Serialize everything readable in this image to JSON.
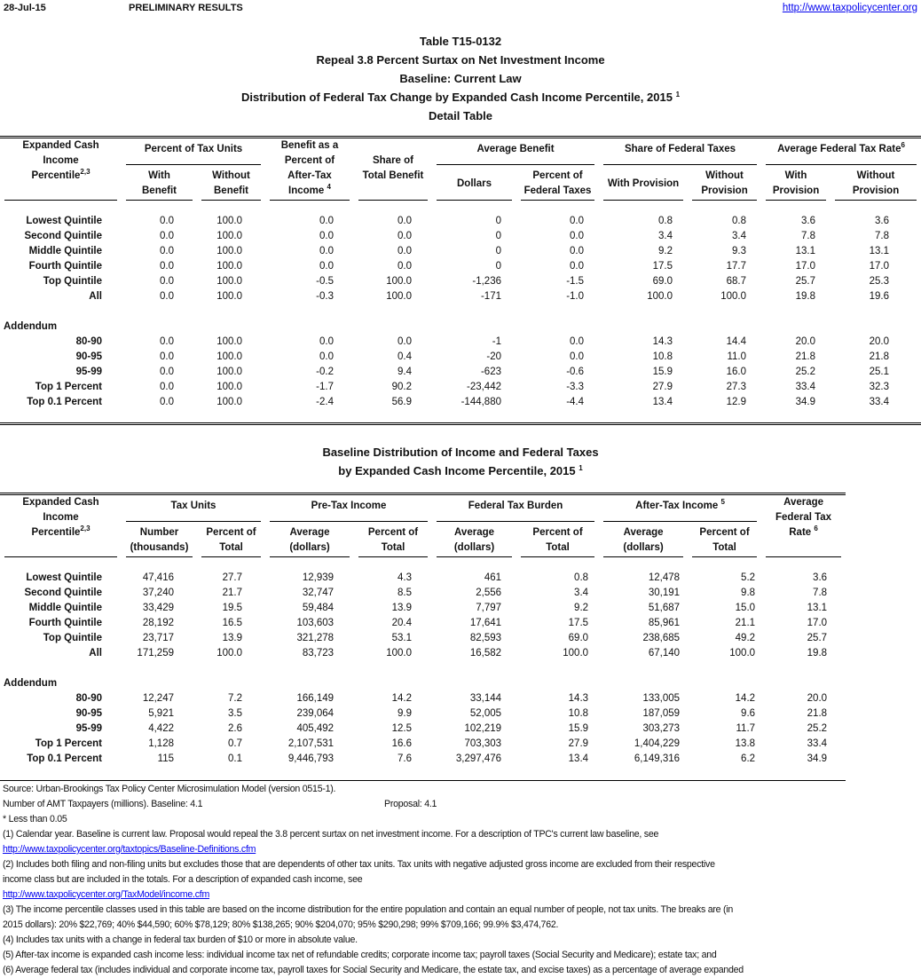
{
  "header": {
    "date": "28-Jul-15",
    "status": "PRELIMINARY RESULTS",
    "link": "http://www.taxpolicycenter.org"
  },
  "titles": [
    "Table T15-0132",
    "Repeal 3.8 Percent Surtax on Net Investment Income",
    "Baseline: Current Law",
    "Distribution of Federal Tax Change by Expanded Cash Income Percentile, 2015",
    "Detail Table"
  ],
  "title_footnote": "1",
  "table1": {
    "label_header": "Expanded Cash Income",
    "label_header2": "Percentile",
    "label_sup": "2,3",
    "groups": {
      "tax_units": "Percent of Tax Units",
      "benefit_pct": [
        "Benefit as a",
        "Percent of",
        "After-Tax",
        "Income"
      ],
      "benefit_pct_sup": "4",
      "share": [
        "Share of",
        "Total Benefit"
      ],
      "avg_benefit": "Average Benefit",
      "share_fed": "Share of Federal Taxes",
      "avg_rate": "Average Federal Tax Rate",
      "avg_rate_sup": "6"
    },
    "sub": {
      "with_benefit": [
        "With",
        "Benefit"
      ],
      "without_benefit": [
        "Without",
        "Benefit"
      ],
      "dollars": "Dollars",
      "pct_fed": [
        "Percent of",
        "Federal Taxes"
      ],
      "with_provision": "With Provision",
      "without_provision": [
        "Without",
        "Provision"
      ],
      "rate_with": [
        "With",
        "Provision"
      ],
      "rate_without": [
        "Without",
        "Provision"
      ]
    },
    "rows": [
      {
        "label": "Lowest Quintile",
        "values": [
          "0.0",
          "100.0",
          "0.0",
          "0.0",
          "0",
          "0.0",
          "0.8",
          "0.8",
          "3.6",
          "3.6"
        ]
      },
      {
        "label": "Second Quintile",
        "values": [
          "0.0",
          "100.0",
          "0.0",
          "0.0",
          "0",
          "0.0",
          "3.4",
          "3.4",
          "7.8",
          "7.8"
        ]
      },
      {
        "label": "Middle Quintile",
        "values": [
          "0.0",
          "100.0",
          "0.0",
          "0.0",
          "0",
          "0.0",
          "9.2",
          "9.3",
          "13.1",
          "13.1"
        ]
      },
      {
        "label": "Fourth Quintile",
        "values": [
          "0.0",
          "100.0",
          "0.0",
          "0.0",
          "0",
          "0.0",
          "17.5",
          "17.7",
          "17.0",
          "17.0"
        ]
      },
      {
        "label": "Top Quintile",
        "values": [
          "0.0",
          "100.0",
          "-0.5",
          "100.0",
          "-1,236",
          "-1.5",
          "69.0",
          "68.7",
          "25.7",
          "25.3"
        ]
      },
      {
        "label": "All",
        "values": [
          "0.0",
          "100.0",
          "-0.3",
          "100.0",
          "-171",
          "-1.0",
          "100.0",
          "100.0",
          "19.8",
          "19.6"
        ]
      }
    ],
    "addendum_label": "Addendum",
    "addendum": [
      {
        "label": "80-90",
        "values": [
          "0.0",
          "100.0",
          "0.0",
          "0.0",
          "-1",
          "0.0",
          "14.3",
          "14.4",
          "20.0",
          "20.0"
        ]
      },
      {
        "label": "90-95",
        "values": [
          "0.0",
          "100.0",
          "0.0",
          "0.4",
          "-20",
          "0.0",
          "10.8",
          "11.0",
          "21.8",
          "21.8"
        ]
      },
      {
        "label": "95-99",
        "values": [
          "0.0",
          "100.0",
          "-0.2",
          "9.4",
          "-623",
          "-0.6",
          "15.9",
          "16.0",
          "25.2",
          "25.1"
        ]
      },
      {
        "label": "Top 1 Percent",
        "values": [
          "0.0",
          "100.0",
          "-1.7",
          "90.2",
          "-23,442",
          "-3.3",
          "27.9",
          "27.3",
          "33.4",
          "32.3"
        ]
      },
      {
        "label": "Top 0.1 Percent",
        "values": [
          "0.0",
          "100.0",
          "-2.4",
          "56.9",
          "-144,880",
          "-4.4",
          "13.4",
          "12.9",
          "34.9",
          "33.4"
        ]
      }
    ]
  },
  "titles2": [
    "Baseline Distribution of Income and Federal Taxes",
    "by Expanded Cash Income Percentile, 2015"
  ],
  "table2": {
    "groups": {
      "tax_units": "Tax Units",
      "pretax": "Pre-Tax Income",
      "burden": "Federal Tax Burden",
      "aftertax": "After-Tax Income",
      "aftertax_sup": "5",
      "rate": [
        "Average",
        "Federal Tax",
        "Rate"
      ],
      "rate_sup": "6"
    },
    "sub": {
      "number": [
        "Number",
        "(thousands)"
      ],
      "pct_total": [
        "Percent of",
        "Total"
      ],
      "average": [
        "Average",
        "(dollars)"
      ]
    },
    "rows": [
      {
        "label": "Lowest Quintile",
        "values": [
          "47,416",
          "27.7",
          "12,939",
          "4.3",
          "461",
          "0.8",
          "12,478",
          "5.2",
          "3.6"
        ]
      },
      {
        "label": "Second Quintile",
        "values": [
          "37,240",
          "21.7",
          "32,747",
          "8.5",
          "2,556",
          "3.4",
          "30,191",
          "9.8",
          "7.8"
        ]
      },
      {
        "label": "Middle Quintile",
        "values": [
          "33,429",
          "19.5",
          "59,484",
          "13.9",
          "7,797",
          "9.2",
          "51,687",
          "15.0",
          "13.1"
        ]
      },
      {
        "label": "Fourth Quintile",
        "values": [
          "28,192",
          "16.5",
          "103,603",
          "20.4",
          "17,641",
          "17.5",
          "85,961",
          "21.1",
          "17.0"
        ]
      },
      {
        "label": "Top Quintile",
        "values": [
          "23,717",
          "13.9",
          "321,278",
          "53.1",
          "82,593",
          "69.0",
          "238,685",
          "49.2",
          "25.7"
        ]
      },
      {
        "label": "All",
        "values": [
          "171,259",
          "100.0",
          "83,723",
          "100.0",
          "16,582",
          "100.0",
          "67,140",
          "100.0",
          "19.8"
        ]
      }
    ],
    "addendum": [
      {
        "label": "80-90",
        "values": [
          "12,247",
          "7.2",
          "166,149",
          "14.2",
          "33,144",
          "14.3",
          "133,005",
          "14.2",
          "20.0"
        ]
      },
      {
        "label": "90-95",
        "values": [
          "5,921",
          "3.5",
          "239,064",
          "9.9",
          "52,005",
          "10.8",
          "187,059",
          "9.6",
          "21.8"
        ]
      },
      {
        "label": "95-99",
        "values": [
          "4,422",
          "2.6",
          "405,492",
          "12.5",
          "102,219",
          "15.9",
          "303,273",
          "11.7",
          "25.2"
        ]
      },
      {
        "label": "Top 1 Percent",
        "values": [
          "1,128",
          "0.7",
          "2,107,531",
          "16.6",
          "703,303",
          "27.9",
          "1,404,229",
          "13.8",
          "33.4"
        ]
      },
      {
        "label": "Top 0.1 Percent",
        "values": [
          "115",
          "0.1",
          "9,446,793",
          "7.6",
          "3,297,476",
          "13.4",
          "6,149,316",
          "6.2",
          "34.9"
        ]
      }
    ]
  },
  "notes": {
    "source": "Source: Urban-Brookings Tax Policy Center Microsimulation Model (version 0515-1).",
    "amt": "Number of AMT Taxpayers (millions).  Baseline: 4.1",
    "amt_proposal": "Proposal: 4.1",
    "less_than": "* Less than 0.05",
    "n1": "(1) Calendar year. Baseline is current law.  Proposal would repeal the 3.8 percent surtax on net investment income.  For a description of TPC's current law baseline, see",
    "n1_link": "http://www.taxpolicycenter.org/taxtopics/Baseline-Definitions.cfm",
    "n2a": "(2) Includes both filing and non-filing units but excludes those that are dependents of other tax units. Tax units with negative adjusted gross income are excluded from their respective",
    "n2b": "income class but are included in the totals. For a description of expanded cash income, see",
    "n2_link": "http://www.taxpolicycenter.org/TaxModel/income.cfm",
    "n3a": "(3) The income percentile classes used in this table are based on the income distribution for the entire population and contain an equal number of people, not tax units. The breaks are (in",
    "n3b": "2015 dollars): 20% $22,769; 40% $44,590; 60% $78,129; 80% $138,265; 90% $204,070; 95% $290,298; 99% $709,166; 99.9% $3,474,762.",
    "n4": "(4) Includes tax units with a change in federal tax burden of $10 or more in absolute value.",
    "n5": "(5) After-tax income is expanded cash income less: individual income tax net of refundable credits; corporate income tax; payroll taxes (Social Security and Medicare); estate tax; and",
    "n6": "(6) Average federal tax (includes individual and corporate income tax, payroll taxes for Social Security and Medicare, the estate tax, and excise taxes) as a percentage of average expanded"
  }
}
